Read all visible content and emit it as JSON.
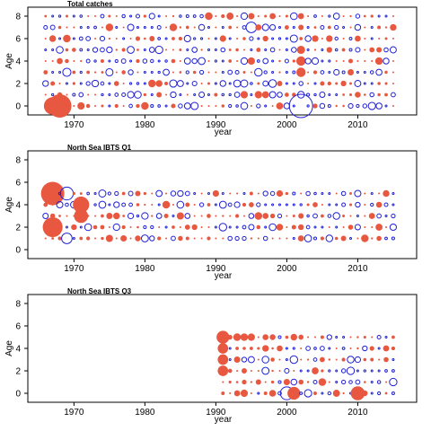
{
  "colors": {
    "positive": "#e8573f",
    "negative": "#1f1fd6",
    "frame": "#000000"
  },
  "chart_data": [
    {
      "type": "scatter",
      "title": "Total catches",
      "xlabel": "year",
      "ylabel": "Age",
      "xlim": [
        1963.5,
        2018.3
      ],
      "ylim": [
        -0.8,
        8.8
      ],
      "xticks": [
        1970,
        1980,
        1990,
        2000,
        2010
      ],
      "yticks": [
        0,
        2,
        4,
        6,
        8
      ],
      "x_range": [
        1966,
        2015
      ],
      "ages": [
        0,
        1,
        2,
        3,
        4,
        5,
        6,
        7,
        8
      ],
      "seed": 11,
      "max_radius": 13,
      "highlights": [
        {
          "x": 1968,
          "age": 0,
          "sign": "positive",
          "size": 1.0
        },
        {
          "x": 1967,
          "age": 0,
          "sign": "positive",
          "size": 0.75
        },
        {
          "x": 2002,
          "age": 0,
          "sign": "negative",
          "size": 1.0
        },
        {
          "x": 1995,
          "age": 7,
          "sign": "negative",
          "size": 0.45
        },
        {
          "x": 1969,
          "age": 3,
          "sign": "negative",
          "size": 0.35
        },
        {
          "x": 2002,
          "age": 3,
          "sign": "positive",
          "size": 0.4
        },
        {
          "x": 2002,
          "age": 4,
          "sign": "positive",
          "size": 0.4
        },
        {
          "x": 2002,
          "age": 5,
          "sign": "positive",
          "size": 0.35
        }
      ]
    },
    {
      "type": "scatter",
      "title": "North Sea IBTS Q1",
      "xlabel": "year",
      "ylabel": "Age",
      "xlim": [
        1963.5,
        2018.3
      ],
      "ylim": [
        -0.8,
        8.8
      ],
      "xticks": [
        1970,
        1980,
        1990,
        2000,
        2010
      ],
      "yticks": [
        0,
        2,
        4,
        6,
        8
      ],
      "x_range": [
        1966,
        2015
      ],
      "ages": [
        1,
        2,
        3,
        4,
        5
      ],
      "seed": 23,
      "max_radius": 13,
      "highlights": [
        {
          "x": 1967,
          "age": 5,
          "sign": "positive",
          "size": 1.0
        },
        {
          "x": 1967,
          "age": 2,
          "sign": "positive",
          "size": 0.85
        },
        {
          "x": 1971,
          "age": 4,
          "sign": "positive",
          "size": 0.7
        },
        {
          "x": 1971,
          "age": 3,
          "sign": "positive",
          "size": 0.6
        },
        {
          "x": 1969,
          "age": 5,
          "sign": "negative",
          "size": 0.55
        },
        {
          "x": 1969,
          "age": 1,
          "sign": "negative",
          "size": 0.45
        }
      ]
    },
    {
      "type": "scatter",
      "title": "North Sea IBTS Q3",
      "xlabel": "year",
      "ylabel": "Age",
      "xlim": [
        1963.5,
        2018.3
      ],
      "ylim": [
        -0.8,
        8.8
      ],
      "xticks": [
        1970,
        1980,
        1990,
        2000,
        2010
      ],
      "yticks": [
        0,
        2,
        4,
        6,
        8
      ],
      "x_range": [
        1991,
        2015
      ],
      "ages": [
        0,
        1,
        2,
        3,
        4,
        5
      ],
      "seed": 37,
      "max_radius": 13,
      "highlights": [
        {
          "x": 1991,
          "age": 5,
          "sign": "positive",
          "size": 0.55
        },
        {
          "x": 1991,
          "age": 4,
          "sign": "positive",
          "size": 0.45
        },
        {
          "x": 1991,
          "age": 3,
          "sign": "positive",
          "size": 0.45
        },
        {
          "x": 1991,
          "age": 2,
          "sign": "positive",
          "size": 0.45
        },
        {
          "x": 2001,
          "age": 0,
          "sign": "positive",
          "size": 0.55
        },
        {
          "x": 2000,
          "age": 0,
          "sign": "negative",
          "size": 0.55
        },
        {
          "x": 2010,
          "age": 0,
          "sign": "positive",
          "size": 0.6
        }
      ]
    }
  ]
}
